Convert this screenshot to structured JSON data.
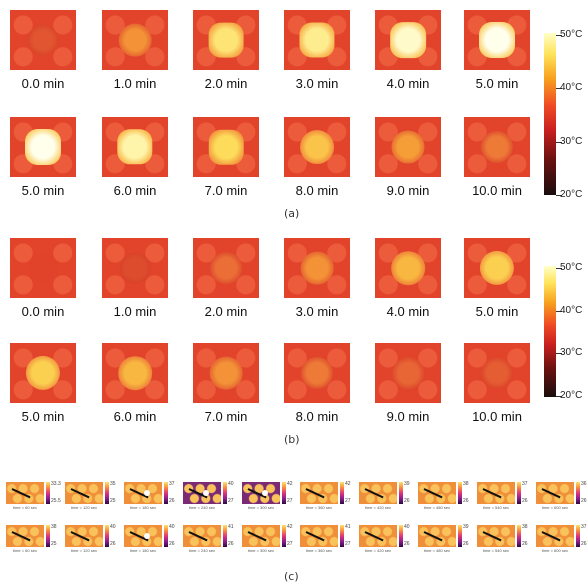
{
  "panel_a": {
    "caption": "(a)",
    "frames": [
      {
        "label": "0.0 min",
        "level": 0.15
      },
      {
        "label": "1.0 min",
        "level": 0.45
      },
      {
        "label": "2.0 min",
        "level": 0.8
      },
      {
        "label": "3.0 min",
        "level": 0.85
      },
      {
        "label": "4.0 min",
        "level": 0.95
      },
      {
        "label": "5.0 min",
        "level": 1.0
      },
      {
        "label": "5.0 min",
        "level": 1.0
      },
      {
        "label": "6.0 min",
        "level": 0.9
      },
      {
        "label": "7.0 min",
        "level": 0.75
      },
      {
        "label": "8.0 min",
        "level": 0.65
      },
      {
        "label": "9.0 min",
        "level": 0.5
      },
      {
        "label": "10.0 min",
        "level": 0.35
      }
    ],
    "colorbar": [
      "50°C",
      "40°C",
      "30°C",
      "20°C"
    ]
  },
  "panel_b": {
    "caption": "(b)",
    "frames": [
      {
        "label": "0.0 min",
        "level": 0.0
      },
      {
        "label": "1.0 min",
        "level": 0.1
      },
      {
        "label": "2.0 min",
        "level": 0.3
      },
      {
        "label": "3.0 min",
        "level": 0.45
      },
      {
        "label": "4.0 min",
        "level": 0.6
      },
      {
        "label": "5.0 min",
        "level": 0.7
      },
      {
        "label": "5.0 min",
        "level": 0.7
      },
      {
        "label": "6.0 min",
        "level": 0.6
      },
      {
        "label": "7.0 min",
        "level": 0.45
      },
      {
        "label": "8.0 min",
        "level": 0.35
      },
      {
        "label": "9.0 min",
        "level": 0.25
      },
      {
        "label": "10.0 min",
        "level": 0.2
      }
    ],
    "colorbar": [
      "50°C",
      "40°C",
      "30°C",
      "20°C"
    ]
  },
  "panel_c": {
    "caption": "(c)",
    "tiles": [
      {
        "time": "time = 60 sec",
        "max": "33.3",
        "min": "25.5",
        "tone": "warm"
      },
      {
        "time": "time = 120 sec",
        "max": "35",
        "min": "25",
        "tone": "warm"
      },
      {
        "time": "time = 180 sec",
        "max": "37",
        "min": "26",
        "tone": "warm"
      },
      {
        "time": "time = 240 sec",
        "max": "40",
        "min": "27",
        "tone": "dark"
      },
      {
        "time": "time = 300 sec",
        "max": "42",
        "min": "27",
        "tone": "dark"
      },
      {
        "time": "time = 360 sec",
        "max": "42",
        "min": "27",
        "tone": "warm"
      },
      {
        "time": "time = 420 sec",
        "max": "39",
        "min": "26",
        "tone": "warm"
      },
      {
        "time": "time = 480 sec",
        "max": "38",
        "min": "26",
        "tone": "warm"
      },
      {
        "time": "time = 540 sec",
        "max": "37",
        "min": "26",
        "tone": "warm"
      },
      {
        "time": "time = 600 sec",
        "max": "36",
        "min": "26",
        "tone": "warm"
      },
      {
        "time": "time = 60 sec",
        "max": "38",
        "min": "25",
        "tone": "warm"
      },
      {
        "time": "time = 120 sec",
        "max": "40",
        "min": "26",
        "tone": "warm"
      },
      {
        "time": "time = 180 sec",
        "max": "40",
        "min": "26",
        "tone": "warm"
      },
      {
        "time": "time = 240 sec",
        "max": "41",
        "min": "26",
        "tone": "warm"
      },
      {
        "time": "time = 300 sec",
        "max": "42",
        "min": "27",
        "tone": "warm"
      },
      {
        "time": "time = 360 sec",
        "max": "41",
        "min": "27",
        "tone": "warm"
      },
      {
        "time": "time = 420 sec",
        "max": "40",
        "min": "26",
        "tone": "warm"
      },
      {
        "time": "time = 480 sec",
        "max": "39",
        "min": "26",
        "tone": "warm"
      },
      {
        "time": "time = 540 sec",
        "max": "38",
        "min": "26",
        "tone": "warm"
      },
      {
        "time": "time = 600 sec",
        "max": "37",
        "min": "26",
        "tone": "warm"
      }
    ]
  },
  "colors": {
    "base": "#e2432b",
    "cell": "#ea5a36",
    "hot": "#fff8d0",
    "cool": "#c8321f"
  }
}
